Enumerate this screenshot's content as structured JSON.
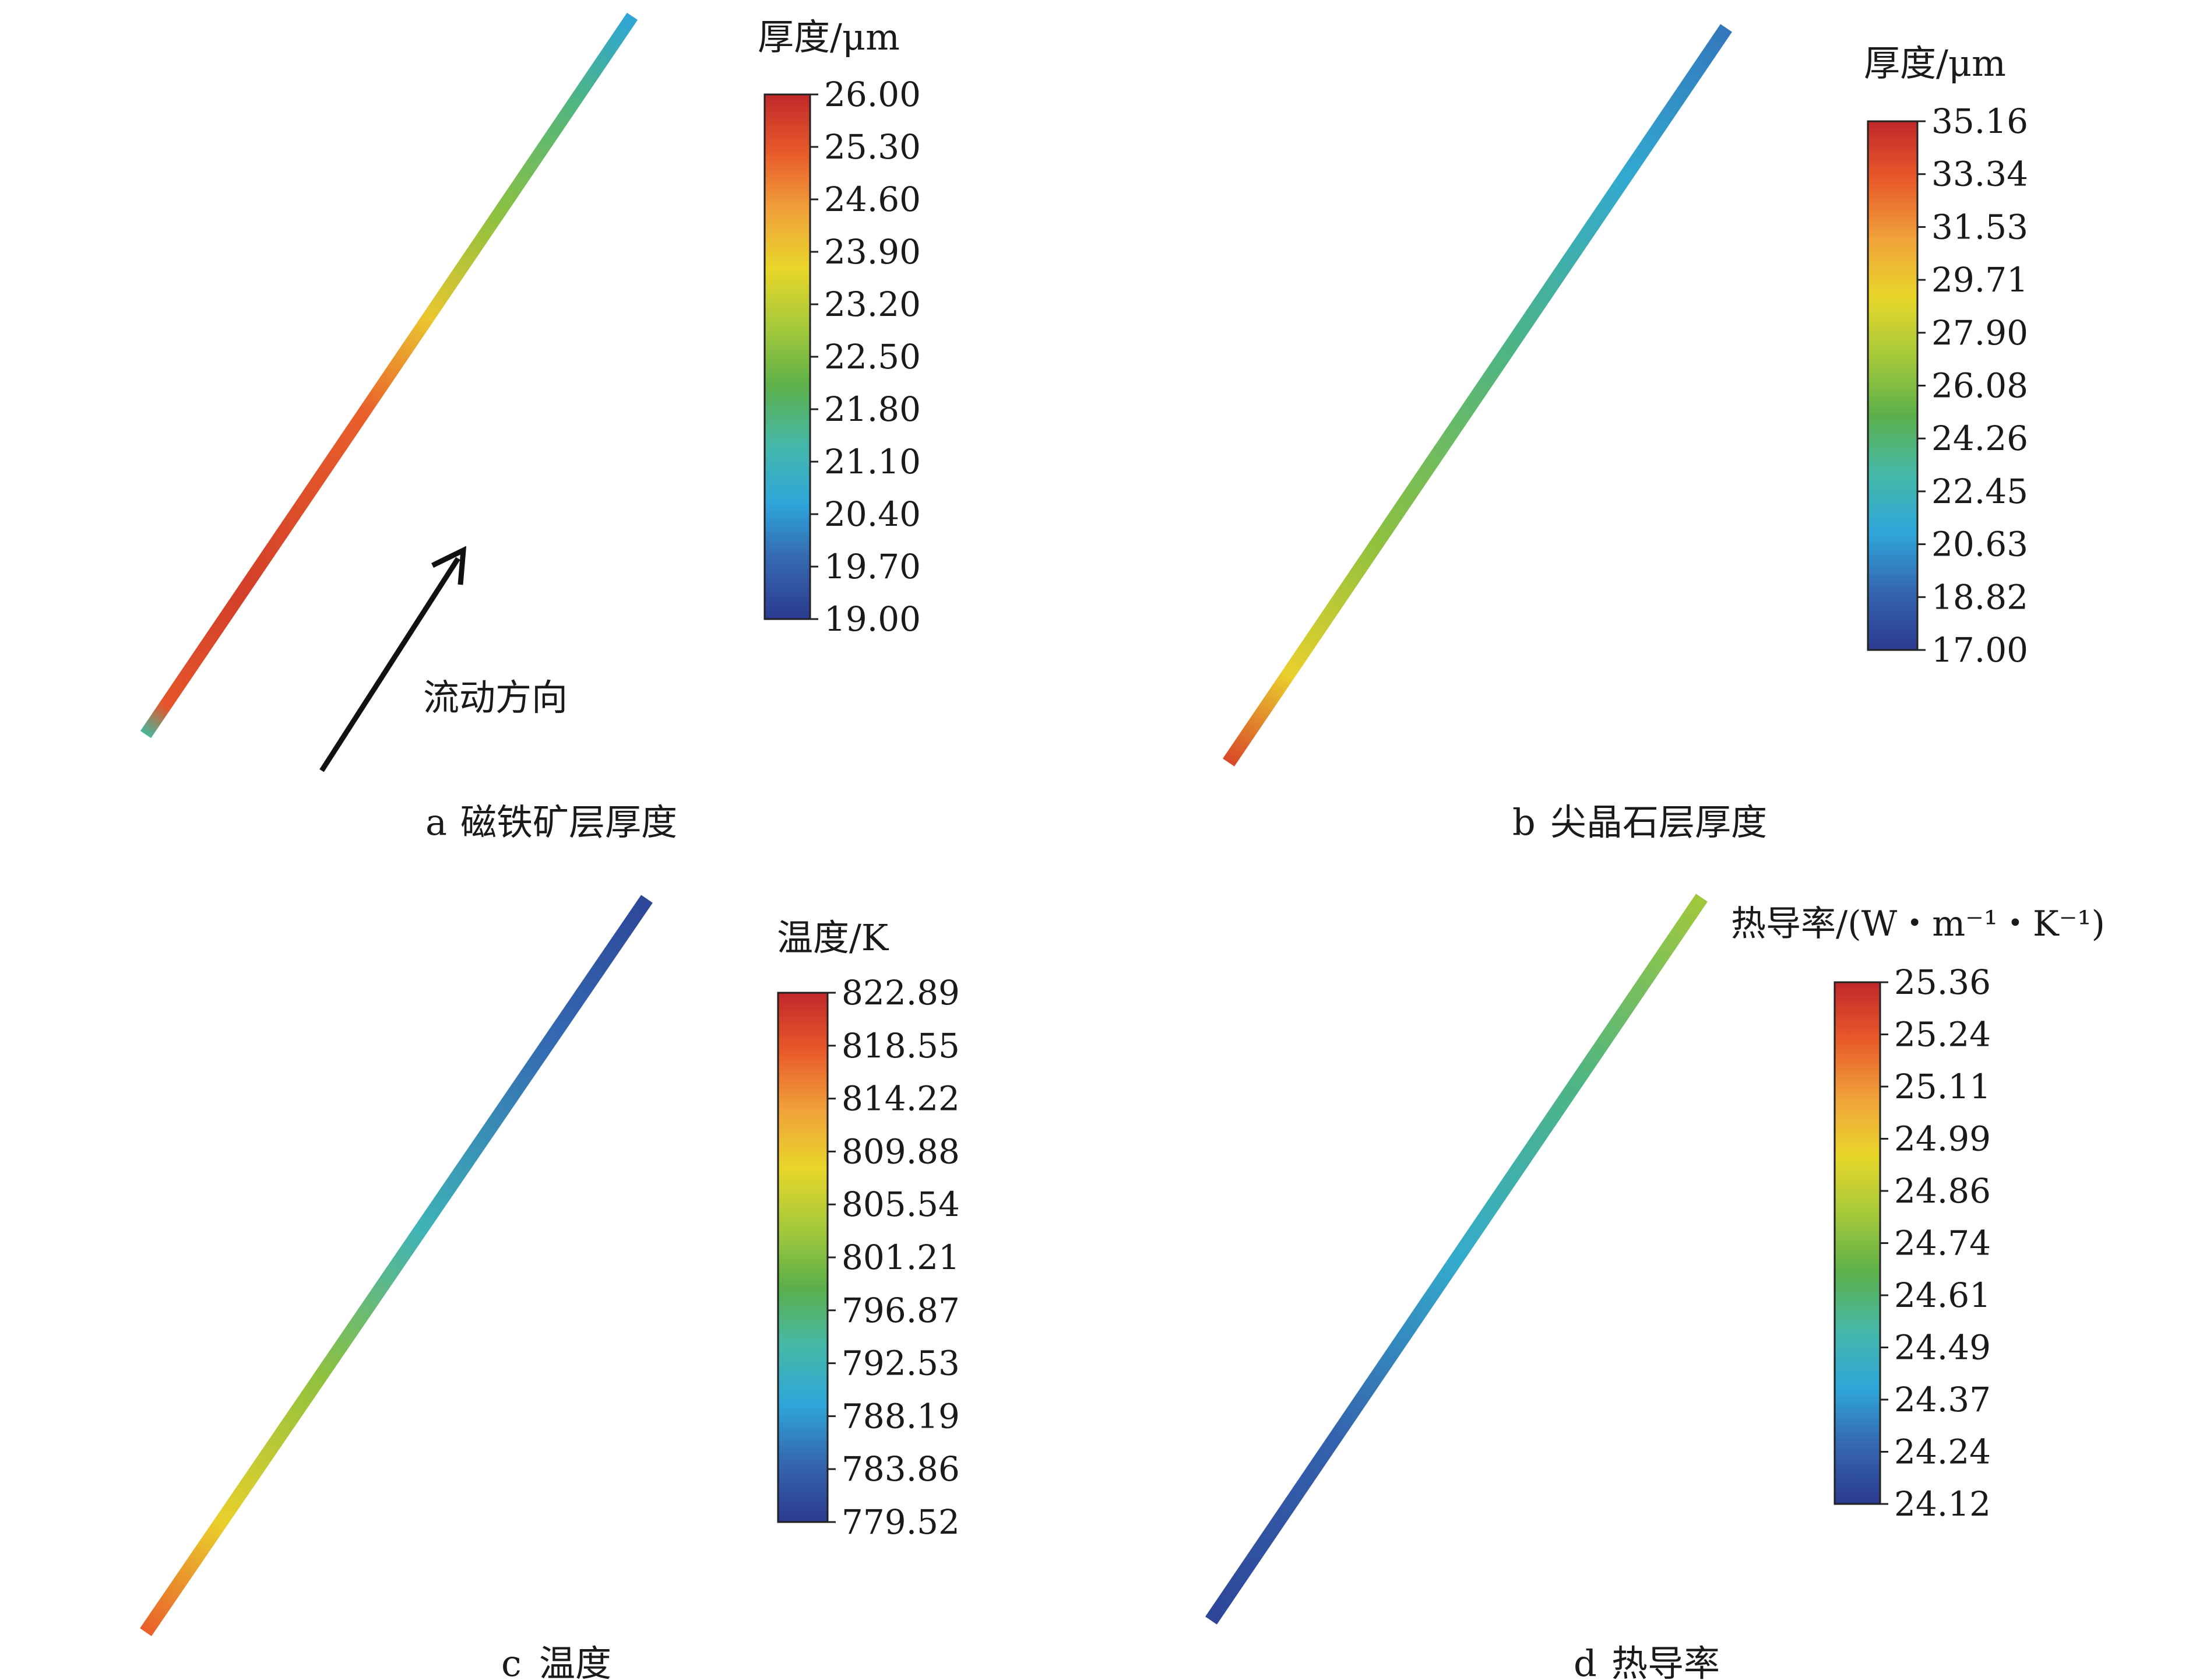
{
  "panels": [
    {
      "id": "a",
      "letter": "a",
      "caption": "磁铁矿层厚度",
      "legend_title": "厚度/μm",
      "ticks": [
        "26.00",
        "25.30",
        "24.60",
        "23.90",
        "23.20",
        "22.50",
        "21.80",
        "21.10",
        "20.40",
        "19.70",
        "19.00"
      ],
      "tube_low_end_level": 0.85,
      "tube_stops": [
        {
          "t": 0.0,
          "level": 0.35
        },
        {
          "t": 0.04,
          "level": 0.9
        },
        {
          "t": 0.2,
          "level": 0.95
        },
        {
          "t": 0.45,
          "level": 0.88
        },
        {
          "t": 0.58,
          "level": 0.7
        },
        {
          "t": 0.72,
          "level": 0.52
        },
        {
          "t": 0.88,
          "level": 0.38
        },
        {
          "t": 1.0,
          "level": 0.22
        }
      ],
      "annotation": {
        "text": "流动方向",
        "icon": "arrow-up-right-icon"
      }
    },
    {
      "id": "b",
      "letter": "b",
      "caption": "尖晶石层厚度",
      "legend_title": "厚度/μm",
      "ticks": [
        "35.16",
        "33.34",
        "31.53",
        "29.71",
        "27.90",
        "26.08",
        "24.26",
        "22.45",
        "20.63",
        "18.82",
        "17.00"
      ],
      "tube_stops": [
        {
          "t": 0.0,
          "level": 0.93
        },
        {
          "t": 0.12,
          "level": 0.68
        },
        {
          "t": 0.3,
          "level": 0.52
        },
        {
          "t": 0.55,
          "level": 0.38
        },
        {
          "t": 0.8,
          "level": 0.24
        },
        {
          "t": 1.0,
          "level": 0.14
        }
      ]
    },
    {
      "id": "c",
      "letter": "c",
      "caption": "温度",
      "legend_title": "温度/K",
      "ticks": [
        "822.89",
        "818.55",
        "814.22",
        "809.88",
        "805.54",
        "801.21",
        "796.87",
        "792.53",
        "788.19",
        "783.86",
        "779.52"
      ],
      "tube_stops": [
        {
          "t": 0.0,
          "level": 0.88
        },
        {
          "t": 0.15,
          "level": 0.68
        },
        {
          "t": 0.35,
          "level": 0.52
        },
        {
          "t": 0.55,
          "level": 0.3
        },
        {
          "t": 0.8,
          "level": 0.12
        },
        {
          "t": 1.0,
          "level": 0.03
        }
      ]
    },
    {
      "id": "d",
      "letter": "d",
      "caption": "热导率",
      "legend_title": "热导率/(W・m⁻¹・K⁻¹)",
      "ticks": [
        "25.36",
        "25.24",
        "25.11",
        "24.99",
        "24.86",
        "24.74",
        "24.61",
        "24.49",
        "24.37",
        "24.24",
        "24.12"
      ],
      "tube_stops": [
        {
          "t": 0.0,
          "level": 0.03
        },
        {
          "t": 0.25,
          "level": 0.1
        },
        {
          "t": 0.5,
          "level": 0.25
        },
        {
          "t": 0.75,
          "level": 0.38
        },
        {
          "t": 1.0,
          "level": 0.55
        }
      ]
    }
  ],
  "colormap": [
    "#2b3a8f",
    "#3566b0",
    "#2ea6d9",
    "#45b8a8",
    "#5cb04a",
    "#a5c93a",
    "#e8d62a",
    "#f0a23a",
    "#e85a2a",
    "#c0282a"
  ]
}
